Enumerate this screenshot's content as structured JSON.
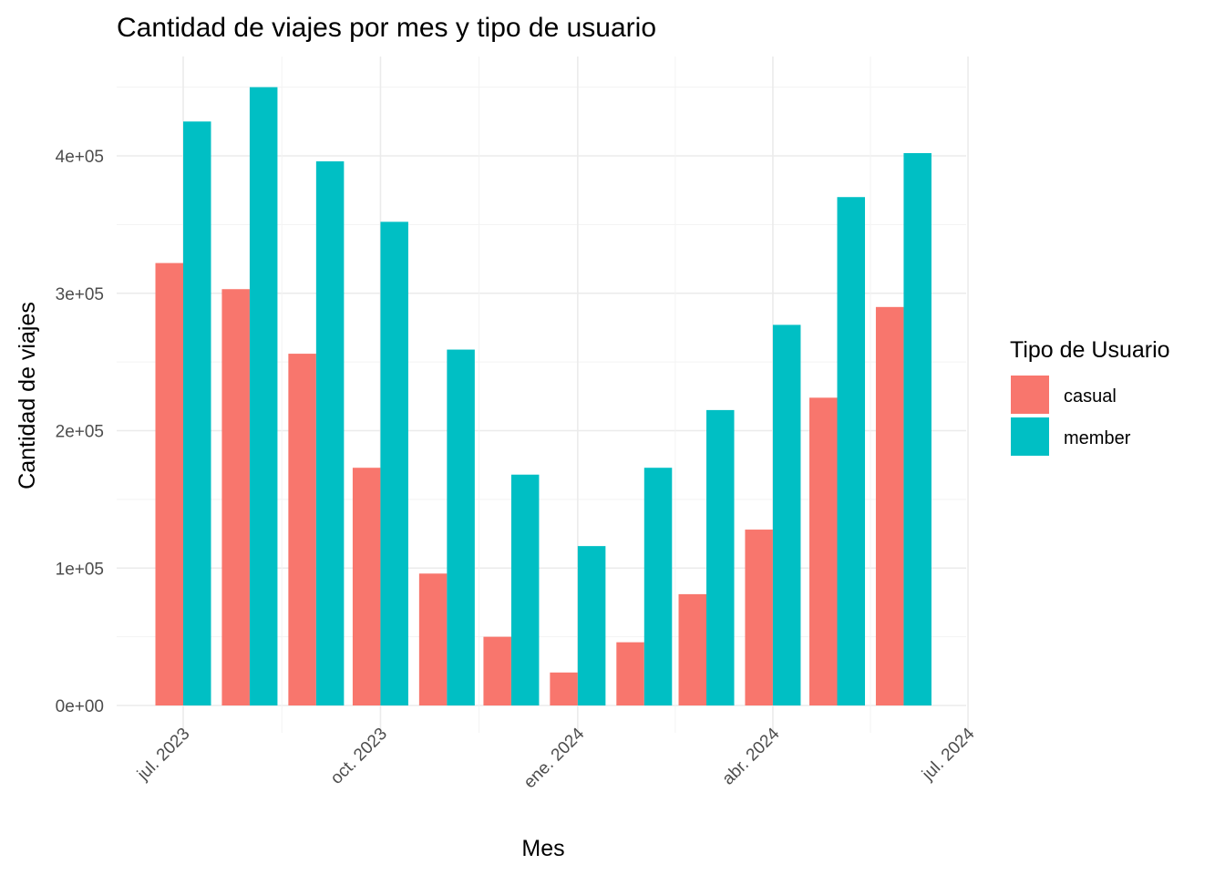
{
  "chart_data": {
    "type": "bar",
    "title": "Cantidad de viajes por mes y tipo de usuario",
    "xlabel": "Mes",
    "ylabel": "Cantidad de viajes",
    "months": [
      "2023-07-01",
      "2023-08-01",
      "2023-09-01",
      "2023-10-01",
      "2023-11-01",
      "2023-12-01",
      "2024-01-01",
      "2024-02-01",
      "2024-03-01",
      "2024-04-01",
      "2024-05-01",
      "2024-06-01"
    ],
    "x_ticks": [
      {
        "date": "2023-07-01",
        "label": "jul. 2023"
      },
      {
        "date": "2023-10-01",
        "label": "oct. 2023"
      },
      {
        "date": "2024-01-01",
        "label": "ene. 2024"
      },
      {
        "date": "2024-04-01",
        "label": "abr. 2024"
      },
      {
        "date": "2024-07-01",
        "label": "jul. 2024"
      }
    ],
    "y_ticks": [
      {
        "value": 0,
        "label": "0e+00"
      },
      {
        "value": 100000,
        "label": "1e+05"
      },
      {
        "value": 200000,
        "label": "2e+05"
      },
      {
        "value": 300000,
        "label": "3e+05"
      },
      {
        "value": 400000,
        "label": "4e+05"
      }
    ],
    "ylim": [
      0,
      450000
    ],
    "legend_title": "Tipo de Usuario",
    "legend_position": "right",
    "grid": true,
    "series": [
      {
        "name": "casual",
        "color": "#F8766D",
        "values": [
          322000,
          303000,
          256000,
          173000,
          96000,
          50000,
          24000,
          46000,
          81000,
          128000,
          224000,
          290000
        ]
      },
      {
        "name": "member",
        "color": "#00BFC4",
        "values": [
          425000,
          450000,
          396000,
          352000,
          259000,
          168000,
          116000,
          173000,
          215000,
          277000,
          370000,
          402000
        ]
      }
    ]
  }
}
